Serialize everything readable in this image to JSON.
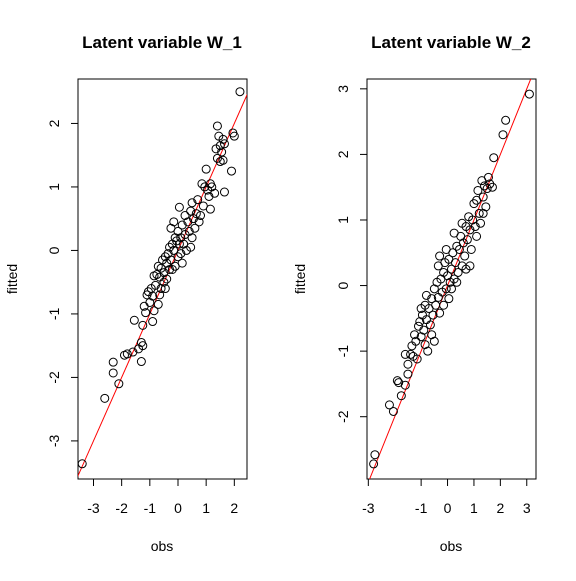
{
  "chart_data": [
    {
      "type": "scatter",
      "title": "Latent variable W_1",
      "xlabel": "obs",
      "ylabel": "fitted",
      "xlim": [
        -3.55,
        2.45
      ],
      "ylim": [
        -3.6,
        2.7
      ],
      "xticks": [
        "-3",
        "-2",
        "-1",
        "0",
        "1",
        "2"
      ],
      "xtick_values": [
        -3,
        -2,
        -1,
        0,
        1,
        2
      ],
      "yticks": [
        "-3",
        "-2",
        "-1",
        "0",
        "1",
        "2"
      ],
      "ytick_values": [
        -3,
        -2,
        -1,
        0,
        1,
        2
      ],
      "grid": false,
      "fit_line": {
        "color": "#ff0000",
        "intercept": 0,
        "slope": 1
      },
      "point_color": "#000000",
      "points": [
        [
          -3.4,
          -3.36
        ],
        [
          -2.6,
          -2.33
        ],
        [
          -2.3,
          -1.93
        ],
        [
          -2.3,
          -1.76
        ],
        [
          -2.1,
          -2.1
        ],
        [
          -1.9,
          -1.65
        ],
        [
          -1.8,
          -1.63
        ],
        [
          -1.6,
          -1.6
        ],
        [
          -1.55,
          -1.1
        ],
        [
          -1.4,
          -1.55
        ],
        [
          -1.3,
          -1.45
        ],
        [
          -1.3,
          -1.75
        ],
        [
          -1.25,
          -1.5
        ],
        [
          -1.25,
          -1.18
        ],
        [
          -1.2,
          -0.88
        ],
        [
          -1.15,
          -0.98
        ],
        [
          -1.05,
          -0.65
        ],
        [
          -1.0,
          -0.82
        ],
        [
          -0.95,
          -0.6
        ],
        [
          -0.9,
          -0.72
        ],
        [
          -0.9,
          -1.12
        ],
        [
          -0.85,
          -0.95
        ],
        [
          -0.8,
          -0.55
        ],
        [
          -0.75,
          -0.38
        ],
        [
          -0.7,
          -0.25
        ],
        [
          -0.7,
          -0.85
        ],
        [
          -0.65,
          -0.42
        ],
        [
          -0.6,
          -0.28
        ],
        [
          -0.6,
          -0.6
        ],
        [
          -0.55,
          -0.15
        ],
        [
          -0.5,
          -0.5
        ],
        [
          -0.5,
          -0.35
        ],
        [
          -0.45,
          -0.1
        ],
        [
          -0.4,
          -0.2
        ],
        [
          -0.4,
          -0.45
        ],
        [
          -0.35,
          -0.05
        ],
        [
          -0.3,
          -0.3
        ],
        [
          -0.3,
          0.05
        ],
        [
          -0.25,
          -0.15
        ],
        [
          -0.2,
          0.1
        ],
        [
          -0.2,
          -0.3
        ],
        [
          -0.15,
          0.0
        ],
        [
          -0.1,
          0.2
        ],
        [
          -0.1,
          -0.25
        ],
        [
          -0.05,
          0.15
        ],
        [
          0.0,
          -0.1
        ],
        [
          0.0,
          0.3
        ],
        [
          0.05,
          0.1
        ],
        [
          0.05,
          0.68
        ],
        [
          0.1,
          0.2
        ],
        [
          0.1,
          -0.05
        ],
        [
          0.15,
          0.4
        ],
        [
          0.2,
          0.1
        ],
        [
          0.25,
          0.25
        ],
        [
          0.25,
          0.55
        ],
        [
          0.3,
          0.0
        ],
        [
          0.35,
          0.45
        ],
        [
          0.4,
          0.3
        ],
        [
          0.45,
          0.62
        ],
        [
          0.5,
          0.2
        ],
        [
          0.5,
          0.75
        ],
        [
          0.55,
          0.5
        ],
        [
          0.6,
          0.35
        ],
        [
          0.65,
          0.58
        ],
        [
          0.7,
          0.8
        ],
        [
          0.8,
          0.55
        ],
        [
          0.85,
          1.05
        ],
        [
          0.9,
          0.7
        ],
        [
          0.95,
          1.0
        ],
        [
          1.0,
          1.28
        ],
        [
          1.05,
          0.95
        ],
        [
          1.1,
          0.85
        ],
        [
          1.15,
          1.05
        ],
        [
          1.15,
          0.65
        ],
        [
          1.2,
          1.0
        ],
        [
          1.3,
          0.9
        ],
        [
          1.35,
          1.6
        ],
        [
          1.4,
          1.45
        ],
        [
          1.4,
          1.96
        ],
        [
          1.45,
          1.8
        ],
        [
          1.5,
          1.65
        ],
        [
          1.5,
          1.4
        ],
        [
          1.55,
          1.55
        ],
        [
          1.6,
          1.75
        ],
        [
          1.6,
          1.42
        ],
        [
          1.65,
          1.68
        ],
        [
          1.65,
          0.92
        ],
        [
          1.9,
          1.25
        ],
        [
          1.95,
          1.85
        ],
        [
          2.0,
          1.8
        ],
        [
          2.2,
          2.5
        ],
        [
          -0.85,
          -0.4
        ],
        [
          -0.65,
          -0.7
        ],
        [
          -0.45,
          -0.6
        ],
        [
          -0.25,
          0.35
        ],
        [
          0.15,
          -0.2
        ],
        [
          0.45,
          0.05
        ],
        [
          0.75,
          0.45
        ],
        [
          -1.1,
          -0.7
        ],
        [
          -0.15,
          0.45
        ]
      ]
    },
    {
      "type": "scatter",
      "title": "Latent variable W_2",
      "xlabel": "obs",
      "ylabel": "fitted",
      "xlim": [
        -3.05,
        3.35
      ],
      "ylim": [
        -2.95,
        3.15
      ],
      "xticks": [
        "-3",
        "-1",
        "0",
        "1",
        "2",
        "3"
      ],
      "xtick_values": [
        -3,
        -1,
        0,
        1,
        2,
        3
      ],
      "yticks": [
        "-2",
        "-1",
        "0",
        "1",
        "2",
        "3"
      ],
      "ytick_values": [
        -2,
        -1,
        0,
        1,
        2,
        3
      ],
      "grid": false,
      "fit_line": {
        "color": "#ff0000",
        "intercept": 0,
        "slope": 1
      },
      "point_color": "#000000",
      "points": [
        [
          -2.8,
          -2.72
        ],
        [
          -2.75,
          -2.58
        ],
        [
          -2.2,
          -1.82
        ],
        [
          -2.05,
          -1.92
        ],
        [
          -1.9,
          -1.45
        ],
        [
          -1.85,
          -1.48
        ],
        [
          -1.75,
          -1.68
        ],
        [
          -1.6,
          -1.52
        ],
        [
          -1.5,
          -1.35
        ],
        [
          -1.5,
          -1.2
        ],
        [
          -1.4,
          -1.05
        ],
        [
          -1.35,
          -0.92
        ],
        [
          -1.3,
          -1.08
        ],
        [
          -1.25,
          -0.75
        ],
        [
          -1.2,
          -0.85
        ],
        [
          -1.15,
          -1.12
        ],
        [
          -1.1,
          -0.62
        ],
        [
          -1.05,
          -0.55
        ],
        [
          -1.0,
          -0.78
        ],
        [
          -0.95,
          -0.45
        ],
        [
          -0.9,
          -0.68
        ],
        [
          -0.85,
          -0.9
        ],
        [
          -0.85,
          -0.3
        ],
        [
          -0.8,
          -0.52
        ],
        [
          -0.75,
          -1.0
        ],
        [
          -0.7,
          -0.35
        ],
        [
          -0.65,
          -0.6
        ],
        [
          -0.6,
          -0.2
        ],
        [
          -0.55,
          -0.45
        ],
        [
          -0.5,
          -0.05
        ],
        [
          -0.45,
          -0.3
        ],
        [
          -0.4,
          0.05
        ],
        [
          -0.35,
          -0.18
        ],
        [
          -0.3,
          -0.42
        ],
        [
          -0.25,
          0.1
        ],
        [
          -0.2,
          -0.1
        ],
        [
          -0.15,
          0.2
        ],
        [
          -0.1,
          0.35
        ],
        [
          -0.05,
          -0.05
        ],
        [
          0.0,
          0.15
        ],
        [
          0.05,
          0.4
        ],
        [
          0.05,
          -0.2
        ],
        [
          0.1,
          0.05
        ],
        [
          0.15,
          0.25
        ],
        [
          0.2,
          0.5
        ],
        [
          0.25,
          0.1
        ],
        [
          0.3,
          0.35
        ],
        [
          0.35,
          0.6
        ],
        [
          0.4,
          0.2
        ],
        [
          0.45,
          0.55
        ],
        [
          0.5,
          0.75
        ],
        [
          0.55,
          0.3
        ],
        [
          0.6,
          0.65
        ],
        [
          0.65,
          0.45
        ],
        [
          0.7,
          0.9
        ],
        [
          0.75,
          0.7
        ],
        [
          0.8,
          1.05
        ],
        [
          0.85,
          0.85
        ],
        [
          0.9,
          0.55
        ],
        [
          0.95,
          1.0
        ],
        [
          1.0,
          1.25
        ],
        [
          1.05,
          0.9
        ],
        [
          1.1,
          1.3
        ],
        [
          1.15,
          1.45
        ],
        [
          1.2,
          1.1
        ],
        [
          1.25,
          0.95
        ],
        [
          1.3,
          1.6
        ],
        [
          1.35,
          1.35
        ],
        [
          1.4,
          1.52
        ],
        [
          1.45,
          1.2
        ],
        [
          1.5,
          1.48
        ],
        [
          1.55,
          1.65
        ],
        [
          1.6,
          1.55
        ],
        [
          1.7,
          1.5
        ],
        [
          1.75,
          1.95
        ],
        [
          2.1,
          2.3
        ],
        [
          2.2,
          2.52
        ],
        [
          3.1,
          2.92
        ],
        [
          -0.8,
          -0.15
        ],
        [
          -0.6,
          -0.75
        ],
        [
          -0.35,
          0.3
        ],
        [
          -0.15,
          -0.3
        ],
        [
          0.15,
          -0.05
        ],
        [
          0.35,
          0.05
        ],
        [
          0.55,
          0.95
        ],
        [
          0.85,
          0.3
        ],
        [
          1.1,
          0.75
        ],
        [
          -1.0,
          -0.35
        ],
        [
          -0.5,
          -0.85
        ],
        [
          0.25,
          0.8
        ],
        [
          -1.6,
          -1.05
        ],
        [
          -0.3,
          0.45
        ],
        [
          0.7,
          0.25
        ],
        [
          1.35,
          1.1
        ],
        [
          -0.05,
          0.55
        ]
      ]
    }
  ]
}
